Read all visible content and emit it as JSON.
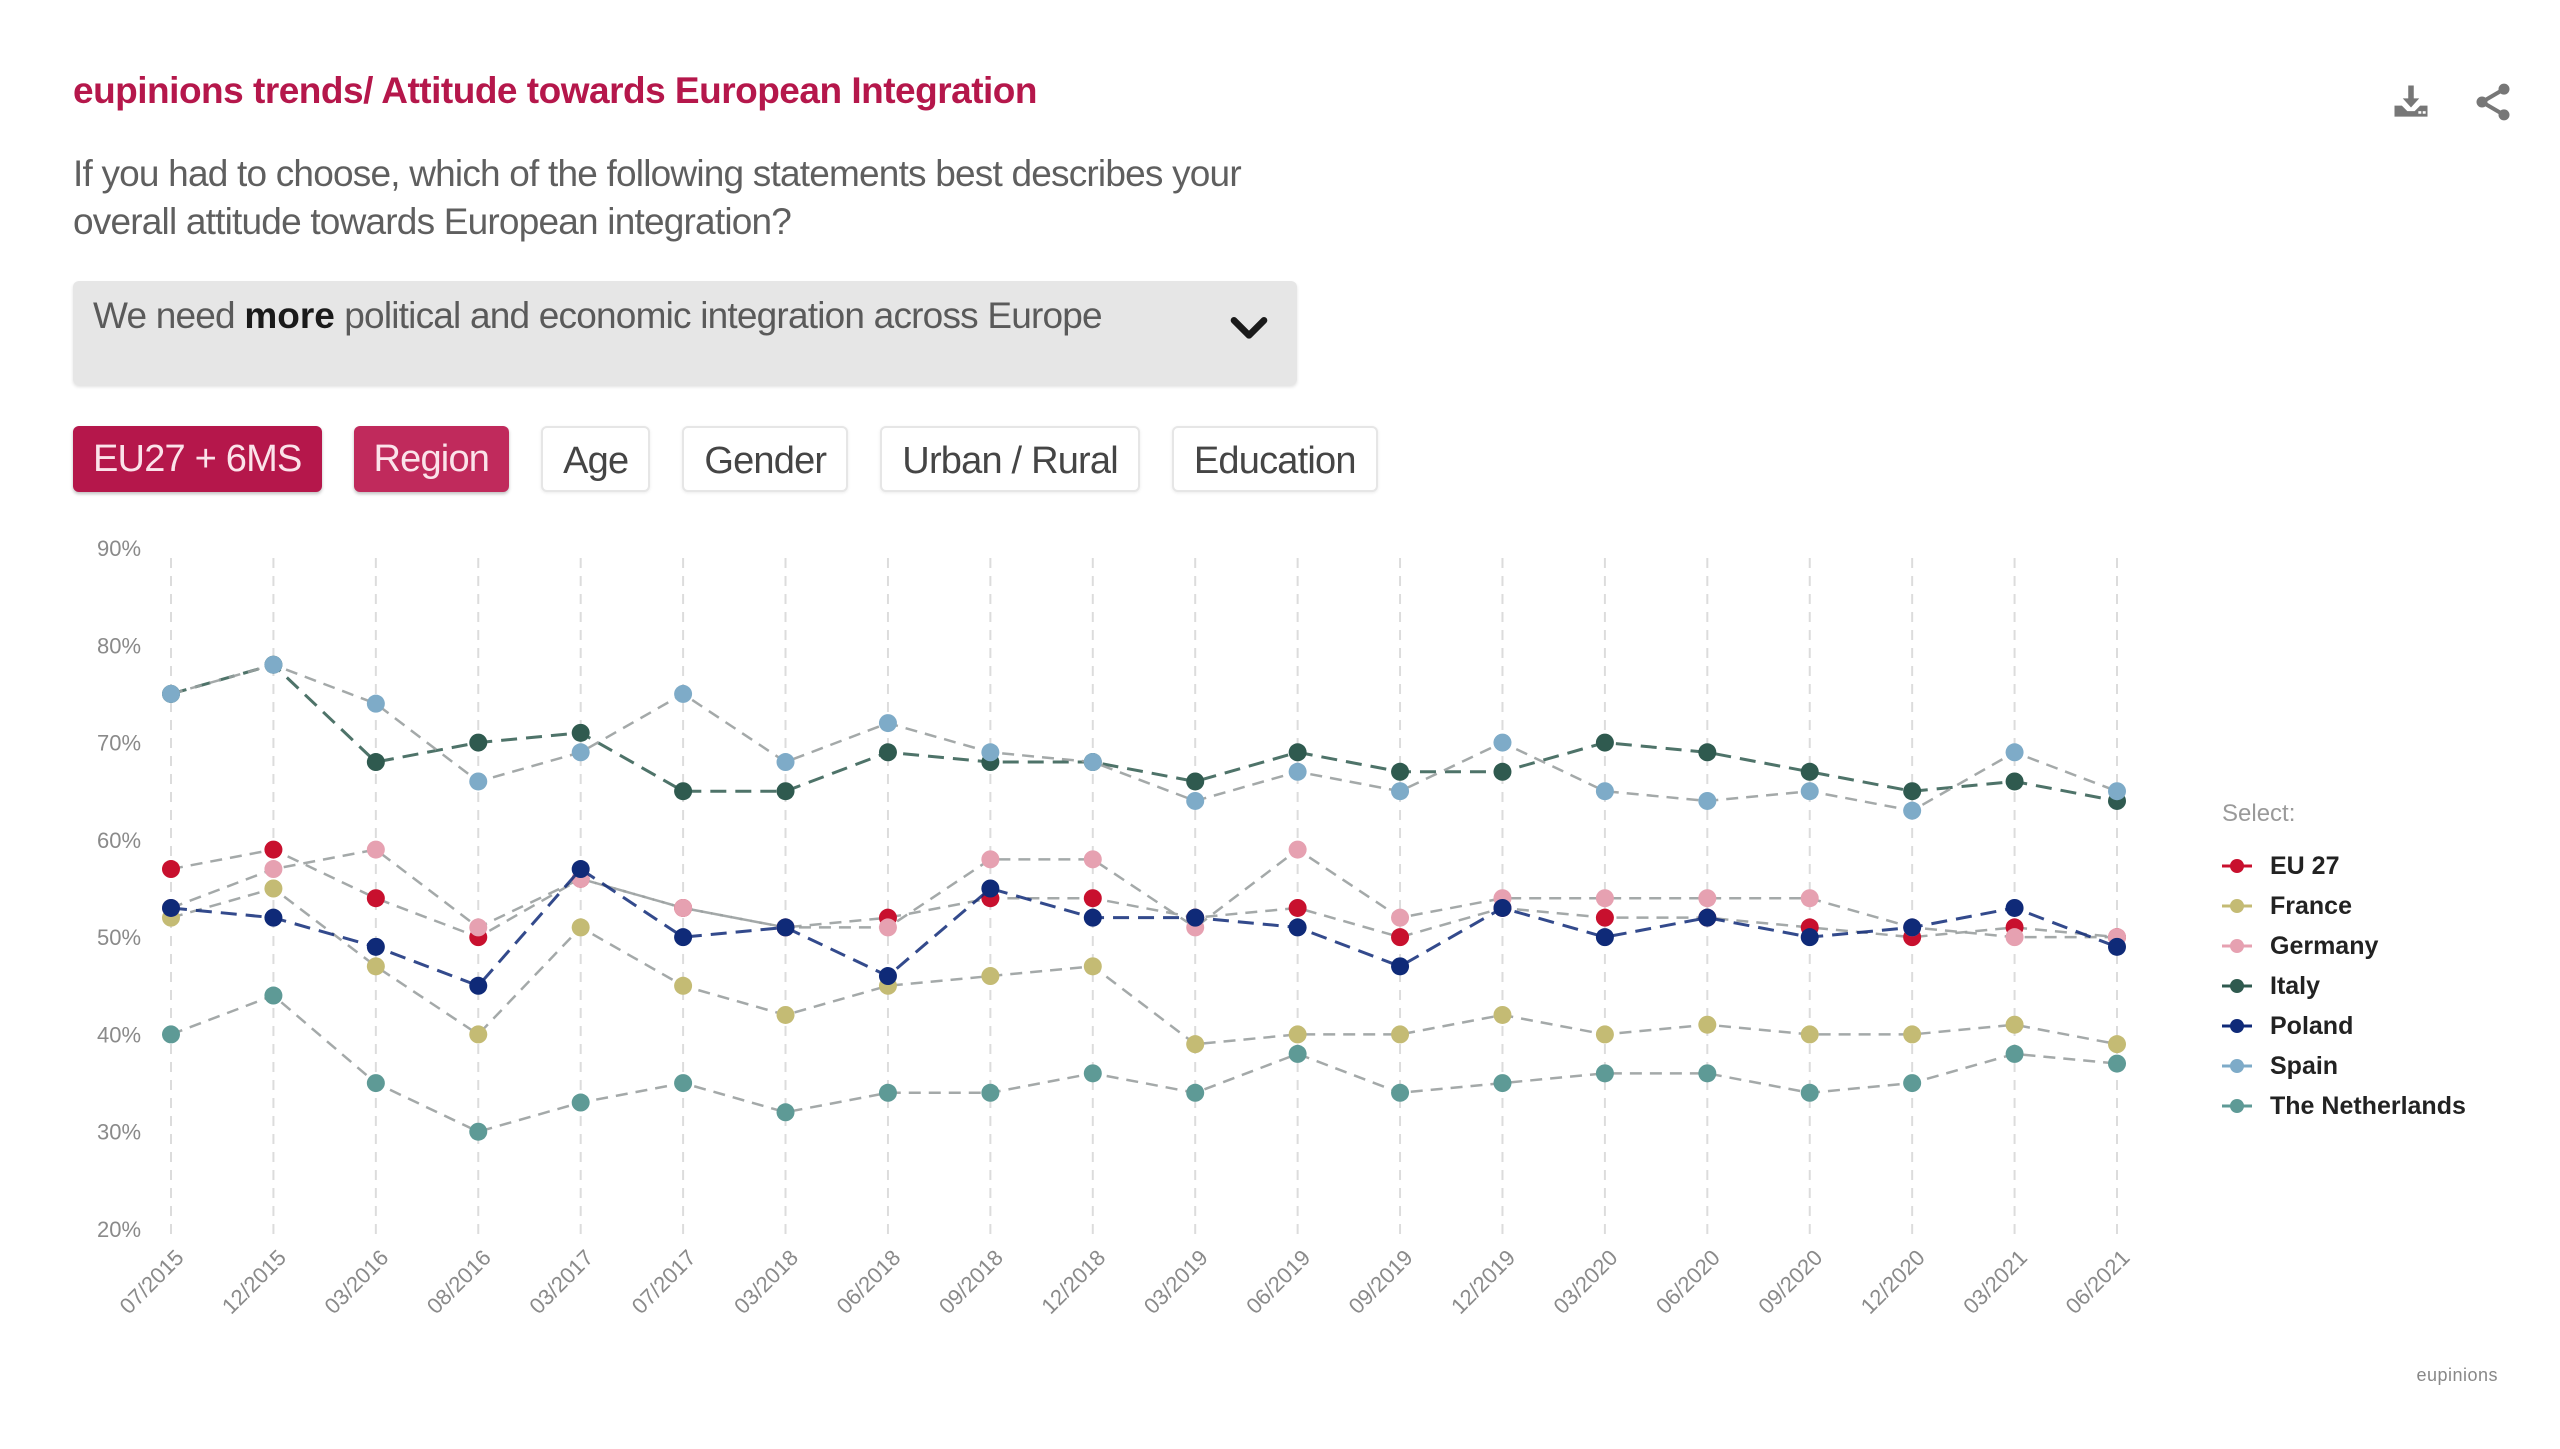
{
  "header": {
    "title": "eupinions trends/ Attitude towards European Integration",
    "question": "If you had to choose, which of the following statements best describes your overall attitude towards European integration?",
    "icons": [
      "download-icon",
      "share-icon"
    ]
  },
  "dropdown": {
    "prefix": "We need ",
    "bold": "more",
    "suffix": " political and economic integration across Europe",
    "icon": "chevron-down-icon"
  },
  "filters": [
    {
      "label": "EU27 + 6MS",
      "active": true
    },
    {
      "label": "Region",
      "active": true
    },
    {
      "label": "Age",
      "active": false
    },
    {
      "label": "Gender",
      "active": false
    },
    {
      "label": "Urban / Rural",
      "active": false
    },
    {
      "label": "Education",
      "active": false
    }
  ],
  "legend": {
    "title": "Select:"
  },
  "footer": {
    "logo": "eupinions"
  },
  "colors": {
    "accent": "#b5174b"
  },
  "chart_data": {
    "type": "line",
    "title": "",
    "xlabel": "",
    "ylabel": "",
    "ylim": [
      20,
      90
    ],
    "yticks": [
      "20%",
      "30%",
      "40%",
      "50%",
      "60%",
      "70%",
      "80%",
      "90%"
    ],
    "grid": "vertical-dashed",
    "legend_position": "right",
    "categories": [
      "07/2015",
      "12/2015",
      "03/2016",
      "08/2016",
      "03/2017",
      "07/2017",
      "03/2018",
      "06/2018",
      "09/2018",
      "12/2018",
      "03/2019",
      "06/2019",
      "09/2019",
      "12/2019",
      "03/2020",
      "06/2020",
      "09/2020",
      "12/2020",
      "03/2021",
      "06/2021"
    ],
    "series": [
      {
        "name": "EU 27",
        "color": "#c8102e",
        "values": [
          57,
          59,
          54,
          50,
          56,
          53,
          51,
          52,
          54,
          54,
          52,
          53,
          50,
          53,
          52,
          52,
          51,
          50,
          51,
          50
        ]
      },
      {
        "name": "France",
        "color": "#c4bb74",
        "values": [
          52,
          55,
          47,
          40,
          51,
          45,
          42,
          45,
          46,
          47,
          39,
          40,
          40,
          42,
          40,
          41,
          40,
          40,
          41,
          39
        ]
      },
      {
        "name": "Germany",
        "color": "#e6a1b1",
        "values": [
          53,
          57,
          59,
          51,
          56,
          53,
          51,
          51,
          58,
          58,
          51,
          59,
          52,
          54,
          54,
          54,
          54,
          51,
          50,
          50
        ]
      },
      {
        "name": "Italy",
        "color": "#2f5a4f",
        "values": [
          75,
          78,
          68,
          70,
          71,
          65,
          65,
          69,
          68,
          68,
          66,
          69,
          67,
          67,
          70,
          69,
          67,
          65,
          66,
          64
        ]
      },
      {
        "name": "Poland",
        "color": "#0f2a78",
        "values": [
          53,
          52,
          49,
          45,
          57,
          50,
          51,
          46,
          55,
          52,
          52,
          51,
          47,
          53,
          50,
          52,
          50,
          51,
          53,
          49
        ]
      },
      {
        "name": "Spain",
        "color": "#7eabc8",
        "values": [
          75,
          78,
          74,
          66,
          69,
          75,
          68,
          72,
          69,
          68,
          64,
          67,
          65,
          70,
          65,
          64,
          65,
          63,
          69,
          65
        ]
      },
      {
        "name": "The Netherlands",
        "color": "#5e9a96",
        "values": [
          40,
          44,
          35,
          30,
          33,
          35,
          32,
          34,
          34,
          36,
          34,
          38,
          34,
          35,
          36,
          36,
          34,
          35,
          38,
          37
        ]
      }
    ]
  }
}
